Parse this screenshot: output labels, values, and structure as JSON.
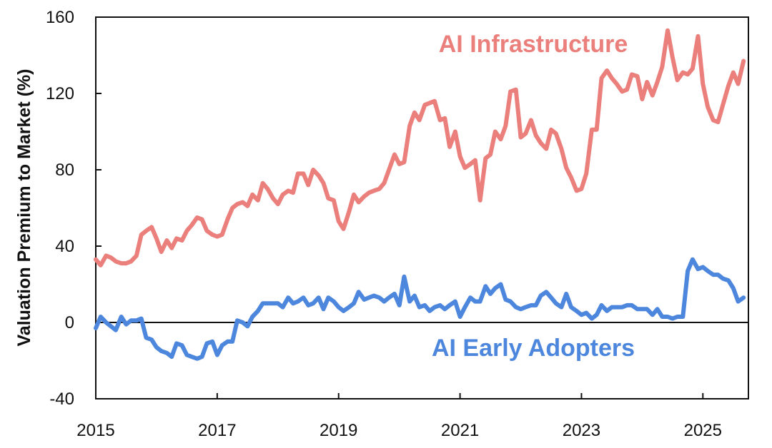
{
  "chart_data": {
    "type": "line",
    "title": "",
    "xlabel": "",
    "ylabel": "Valuation Premium to Market (%)",
    "xlim": [
      2015,
      2025.75
    ],
    "ylim": [
      -40,
      160
    ],
    "x_ticks": [
      2015,
      2017,
      2019,
      2021,
      2023,
      2025
    ],
    "x_tick_labels": [
      "2015",
      "2017",
      "2019",
      "2021",
      "2023",
      "2025"
    ],
    "y_ticks": [
      -40,
      0,
      40,
      80,
      120,
      160
    ],
    "y_tick_labels": [
      "-40",
      "0",
      "40",
      "80",
      "120",
      "160"
    ],
    "zero_line": true,
    "grid": false,
    "legend": "inline labels",
    "series": [
      {
        "name": "AI Infrastructure",
        "label": "AI Infrastructure",
        "color": "#ea7f7b",
        "points": [
          [
            2015.0,
            33
          ],
          [
            2015.08,
            30
          ],
          [
            2015.17,
            35
          ],
          [
            2015.25,
            34
          ],
          [
            2015.33,
            32
          ],
          [
            2015.42,
            31
          ],
          [
            2015.5,
            31
          ],
          [
            2015.58,
            32
          ],
          [
            2015.67,
            35
          ],
          [
            2015.75,
            46
          ],
          [
            2015.83,
            48
          ],
          [
            2015.92,
            50
          ],
          [
            2016.0,
            44
          ],
          [
            2016.08,
            37
          ],
          [
            2016.17,
            43
          ],
          [
            2016.25,
            39
          ],
          [
            2016.33,
            44
          ],
          [
            2016.42,
            43
          ],
          [
            2016.5,
            48
          ],
          [
            2016.58,
            51
          ],
          [
            2016.67,
            55
          ],
          [
            2016.75,
            54
          ],
          [
            2016.83,
            48
          ],
          [
            2016.92,
            46
          ],
          [
            2017.0,
            45
          ],
          [
            2017.08,
            46
          ],
          [
            2017.17,
            54
          ],
          [
            2017.25,
            60
          ],
          [
            2017.33,
            62
          ],
          [
            2017.42,
            63
          ],
          [
            2017.5,
            61
          ],
          [
            2017.58,
            67
          ],
          [
            2017.67,
            64
          ],
          [
            2017.75,
            73
          ],
          [
            2017.83,
            70
          ],
          [
            2017.92,
            65
          ],
          [
            2018.0,
            62
          ],
          [
            2018.08,
            67
          ],
          [
            2018.17,
            69
          ],
          [
            2018.25,
            68
          ],
          [
            2018.33,
            78
          ],
          [
            2018.42,
            78
          ],
          [
            2018.5,
            72
          ],
          [
            2018.58,
            80
          ],
          [
            2018.67,
            77
          ],
          [
            2018.75,
            73
          ],
          [
            2018.83,
            65
          ],
          [
            2018.92,
            64
          ],
          [
            2019.0,
            53
          ],
          [
            2019.08,
            49
          ],
          [
            2019.17,
            58
          ],
          [
            2019.25,
            67
          ],
          [
            2019.33,
            63
          ],
          [
            2019.42,
            66
          ],
          [
            2019.5,
            68
          ],
          [
            2019.58,
            69
          ],
          [
            2019.67,
            70
          ],
          [
            2019.75,
            73
          ],
          [
            2019.83,
            80
          ],
          [
            2019.92,
            88
          ],
          [
            2020.0,
            83
          ],
          [
            2020.08,
            84
          ],
          [
            2020.17,
            103
          ],
          [
            2020.25,
            110
          ],
          [
            2020.33,
            106
          ],
          [
            2020.42,
            114
          ],
          [
            2020.5,
            115
          ],
          [
            2020.58,
            116
          ],
          [
            2020.67,
            106
          ],
          [
            2020.75,
            107
          ],
          [
            2020.83,
            92
          ],
          [
            2020.92,
            100
          ],
          [
            2021.0,
            87
          ],
          [
            2021.08,
            81
          ],
          [
            2021.17,
            83
          ],
          [
            2021.25,
            85
          ],
          [
            2021.33,
            64
          ],
          [
            2021.42,
            86
          ],
          [
            2021.5,
            88
          ],
          [
            2021.58,
            100
          ],
          [
            2021.67,
            96
          ],
          [
            2021.75,
            103
          ],
          [
            2021.83,
            121
          ],
          [
            2021.92,
            122
          ],
          [
            2022.0,
            97
          ],
          [
            2022.08,
            99
          ],
          [
            2022.17,
            106
          ],
          [
            2022.25,
            98
          ],
          [
            2022.33,
            94
          ],
          [
            2022.42,
            91
          ],
          [
            2022.5,
            101
          ],
          [
            2022.58,
            99
          ],
          [
            2022.67,
            91
          ],
          [
            2022.75,
            81
          ],
          [
            2022.83,
            76
          ],
          [
            2022.92,
            69
          ],
          [
            2023.0,
            70
          ],
          [
            2023.08,
            78
          ],
          [
            2023.17,
            101
          ],
          [
            2023.25,
            101
          ],
          [
            2023.33,
            128
          ],
          [
            2023.42,
            132
          ],
          [
            2023.5,
            128
          ],
          [
            2023.58,
            125
          ],
          [
            2023.67,
            121
          ],
          [
            2023.75,
            122
          ],
          [
            2023.83,
            130
          ],
          [
            2023.92,
            129
          ],
          [
            2024.0,
            117
          ],
          [
            2024.08,
            126
          ],
          [
            2024.17,
            119
          ],
          [
            2024.25,
            126
          ],
          [
            2024.33,
            134
          ],
          [
            2024.42,
            153
          ],
          [
            2024.5,
            139
          ],
          [
            2024.58,
            127
          ],
          [
            2024.67,
            131
          ],
          [
            2024.75,
            130
          ],
          [
            2024.83,
            133
          ],
          [
            2024.92,
            150
          ],
          [
            2025.0,
            125
          ],
          [
            2025.08,
            113
          ],
          [
            2025.17,
            106
          ],
          [
            2025.25,
            105
          ],
          [
            2025.33,
            114
          ],
          [
            2025.42,
            124
          ],
          [
            2025.5,
            131
          ],
          [
            2025.58,
            125
          ],
          [
            2025.67,
            137
          ]
        ]
      },
      {
        "name": "AI Early Adopters",
        "label": "AI Early Adopters",
        "color": "#4c86dd",
        "points": [
          [
            2015.0,
            -3
          ],
          [
            2015.08,
            3
          ],
          [
            2015.17,
            0
          ],
          [
            2015.25,
            -2
          ],
          [
            2015.33,
            -4
          ],
          [
            2015.42,
            3
          ],
          [
            2015.5,
            -1
          ],
          [
            2015.58,
            1
          ],
          [
            2015.67,
            1
          ],
          [
            2015.75,
            2
          ],
          [
            2015.83,
            -8
          ],
          [
            2015.92,
            -9
          ],
          [
            2016.0,
            -13
          ],
          [
            2016.08,
            -15
          ],
          [
            2016.17,
            -16
          ],
          [
            2016.25,
            -18
          ],
          [
            2016.33,
            -11
          ],
          [
            2016.42,
            -12
          ],
          [
            2016.5,
            -17
          ],
          [
            2016.58,
            -18
          ],
          [
            2016.67,
            -19
          ],
          [
            2016.75,
            -18
          ],
          [
            2016.83,
            -11
          ],
          [
            2016.92,
            -10
          ],
          [
            2017.0,
            -17
          ],
          [
            2017.08,
            -12
          ],
          [
            2017.17,
            -10
          ],
          [
            2017.25,
            -10
          ],
          [
            2017.33,
            1
          ],
          [
            2017.42,
            0
          ],
          [
            2017.5,
            -2
          ],
          [
            2017.58,
            3
          ],
          [
            2017.67,
            6
          ],
          [
            2017.75,
            10
          ],
          [
            2017.83,
            10
          ],
          [
            2017.92,
            10
          ],
          [
            2018.0,
            10
          ],
          [
            2018.08,
            8
          ],
          [
            2018.17,
            13
          ],
          [
            2018.25,
            10
          ],
          [
            2018.33,
            11
          ],
          [
            2018.42,
            13
          ],
          [
            2018.5,
            9
          ],
          [
            2018.58,
            10
          ],
          [
            2018.67,
            13
          ],
          [
            2018.75,
            7
          ],
          [
            2018.83,
            13
          ],
          [
            2018.92,
            11
          ],
          [
            2019.0,
            8
          ],
          [
            2019.08,
            6
          ],
          [
            2019.17,
            8
          ],
          [
            2019.25,
            10
          ],
          [
            2019.33,
            16
          ],
          [
            2019.42,
            12
          ],
          [
            2019.5,
            13
          ],
          [
            2019.58,
            14
          ],
          [
            2019.67,
            13
          ],
          [
            2019.75,
            11
          ],
          [
            2019.83,
            13
          ],
          [
            2019.92,
            15
          ],
          [
            2020.0,
            9
          ],
          [
            2020.08,
            24
          ],
          [
            2020.17,
            11
          ],
          [
            2020.25,
            14
          ],
          [
            2020.33,
            8
          ],
          [
            2020.42,
            9
          ],
          [
            2020.5,
            6
          ],
          [
            2020.58,
            8
          ],
          [
            2020.67,
            9
          ],
          [
            2020.75,
            7
          ],
          [
            2020.83,
            9
          ],
          [
            2020.92,
            11
          ],
          [
            2021.0,
            3
          ],
          [
            2021.08,
            8
          ],
          [
            2021.17,
            13
          ],
          [
            2021.25,
            11
          ],
          [
            2021.33,
            11
          ],
          [
            2021.42,
            19
          ],
          [
            2021.5,
            15
          ],
          [
            2021.58,
            18
          ],
          [
            2021.67,
            20
          ],
          [
            2021.75,
            12
          ],
          [
            2021.83,
            11
          ],
          [
            2021.92,
            8
          ],
          [
            2022.0,
            7
          ],
          [
            2022.08,
            8
          ],
          [
            2022.17,
            9
          ],
          [
            2022.25,
            9
          ],
          [
            2022.33,
            14
          ],
          [
            2022.42,
            16
          ],
          [
            2022.5,
            13
          ],
          [
            2022.58,
            10
          ],
          [
            2022.67,
            8
          ],
          [
            2022.75,
            15
          ],
          [
            2022.83,
            8
          ],
          [
            2022.92,
            6
          ],
          [
            2023.0,
            4
          ],
          [
            2023.08,
            5
          ],
          [
            2023.17,
            2
          ],
          [
            2023.25,
            4
          ],
          [
            2023.33,
            9
          ],
          [
            2023.42,
            6
          ],
          [
            2023.5,
            8
          ],
          [
            2023.58,
            8
          ],
          [
            2023.67,
            8
          ],
          [
            2023.75,
            9
          ],
          [
            2023.83,
            9
          ],
          [
            2023.92,
            7
          ],
          [
            2024.0,
            7
          ],
          [
            2024.08,
            7
          ],
          [
            2024.17,
            4
          ],
          [
            2024.25,
            7
          ],
          [
            2024.33,
            3
          ],
          [
            2024.42,
            3
          ],
          [
            2024.5,
            2
          ],
          [
            2024.58,
            3
          ],
          [
            2024.67,
            3
          ],
          [
            2024.75,
            27
          ],
          [
            2024.83,
            33
          ],
          [
            2024.92,
            28
          ],
          [
            2025.0,
            29
          ],
          [
            2025.08,
            27
          ],
          [
            2025.17,
            25
          ],
          [
            2025.25,
            25
          ],
          [
            2025.33,
            23
          ],
          [
            2025.42,
            22
          ],
          [
            2025.5,
            18
          ],
          [
            2025.58,
            11
          ],
          [
            2025.67,
            13
          ]
        ]
      }
    ]
  }
}
